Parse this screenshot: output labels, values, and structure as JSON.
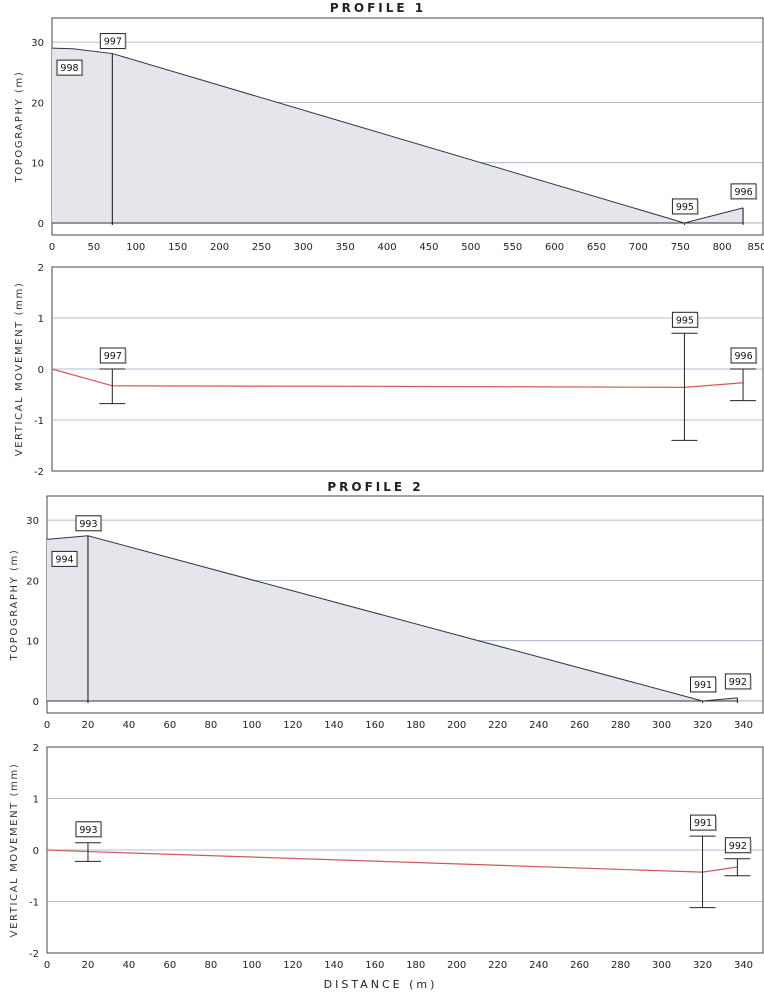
{
  "colors": {
    "topo_fill": "#e4e6ec",
    "topo_line": "#2e3440",
    "movement_line": "#d05a5a",
    "grid": "#9aa8c7",
    "error_bar": "#222222",
    "frame": "#444444"
  },
  "chart_data": [
    {
      "id": "p1_topo",
      "type": "area",
      "title": "PROFILE 1",
      "ylabel": "TOPOGRAPHY (m)",
      "xlabel": "",
      "xlim": [
        0,
        850
      ],
      "ylim": [
        -2,
        34
      ],
      "xticks": [
        0,
        50,
        100,
        150,
        200,
        250,
        300,
        350,
        400,
        450,
        500,
        550,
        600,
        650,
        700,
        750,
        800,
        850
      ],
      "yticks": [
        0,
        10,
        20,
        30
      ],
      "ygrid": [
        0,
        10,
        20,
        30
      ],
      "series": [
        {
          "x": [
            0,
            25,
            72,
            755,
            825
          ],
          "y": [
            29.0,
            28.9,
            28.1,
            0.0,
            2.5
          ]
        }
      ],
      "markers": [
        {
          "label": "998",
          "x": 0,
          "y": 29.0
        },
        {
          "label": "997",
          "x": 72,
          "y": 28.1
        },
        {
          "label": "995",
          "x": 755,
          "y": 0.0
        },
        {
          "label": "996",
          "x": 825,
          "y": 2.5
        }
      ]
    },
    {
      "id": "p1_move",
      "type": "line",
      "title": "",
      "ylabel": "VERTICAL MOVEMENT (mm)",
      "xlabel": "",
      "xlim": [
        0,
        850
      ],
      "ylim": [
        -2,
        2
      ],
      "xticks": [],
      "yticks": [
        2,
        1,
        0,
        -1,
        -2
      ],
      "ygrid": [
        1,
        0,
        -1
      ],
      "series": [
        {
          "x": [
            0,
            72,
            400,
            755,
            825
          ],
          "y": [
            0.0,
            -0.33,
            -0.34,
            -0.36,
            -0.27
          ]
        }
      ],
      "error_bars": [
        {
          "label": "997",
          "x": 72,
          "low": -0.68,
          "high": 0.0
        },
        {
          "label": "995",
          "x": 755,
          "low": -1.4,
          "high": 0.7
        },
        {
          "label": "996",
          "x": 825,
          "low": -0.62,
          "high": 0.0
        }
      ]
    },
    {
      "id": "p2_topo",
      "type": "area",
      "title": "PROFILE 2",
      "ylabel": "TOPOGRAPHY (m)",
      "xlabel": "",
      "xlim": [
        0,
        350
      ],
      "ylim": [
        -2,
        34
      ],
      "xticks": [
        0,
        20,
        40,
        60,
        80,
        100,
        120,
        140,
        160,
        180,
        200,
        220,
        240,
        260,
        280,
        300,
        320,
        340
      ],
      "yticks": [
        0,
        10,
        20,
        30
      ],
      "ygrid": [
        0,
        10,
        20,
        30
      ],
      "series": [
        {
          "x": [
            0,
            20,
            320,
            337
          ],
          "y": [
            26.8,
            27.4,
            0.0,
            0.5
          ]
        }
      ],
      "markers": [
        {
          "label": "994",
          "x": 0,
          "y": 26.8
        },
        {
          "label": "993",
          "x": 20,
          "y": 27.4
        },
        {
          "label": "991",
          "x": 320,
          "y": 0.0
        },
        {
          "label": "992",
          "x": 337,
          "y": 0.5
        }
      ]
    },
    {
      "id": "p2_move",
      "type": "line",
      "title": "",
      "ylabel": "VERTICAL MOVEMENT (mm)",
      "xlabel": "DISTANCE (m)",
      "xlim": [
        0,
        350
      ],
      "ylim": [
        -2,
        2
      ],
      "xticks": [
        0,
        20,
        40,
        60,
        80,
        100,
        120,
        140,
        160,
        180,
        200,
        220,
        240,
        260,
        280,
        300,
        320,
        340
      ],
      "yticks": [
        2,
        1,
        0,
        -1,
        -2
      ],
      "ygrid": [
        1,
        0,
        -1
      ],
      "series": [
        {
          "x": [
            0,
            20,
            320,
            337
          ],
          "y": [
            0.0,
            -0.03,
            -0.43,
            -0.33
          ]
        }
      ],
      "error_bars": [
        {
          "label": "993",
          "x": 20,
          "low": -0.22,
          "high": 0.14
        },
        {
          "label": "991",
          "x": 320,
          "low": -1.12,
          "high": 0.27
        },
        {
          "label": "992",
          "x": 337,
          "low": -0.5,
          "high": -0.17
        }
      ]
    }
  ]
}
